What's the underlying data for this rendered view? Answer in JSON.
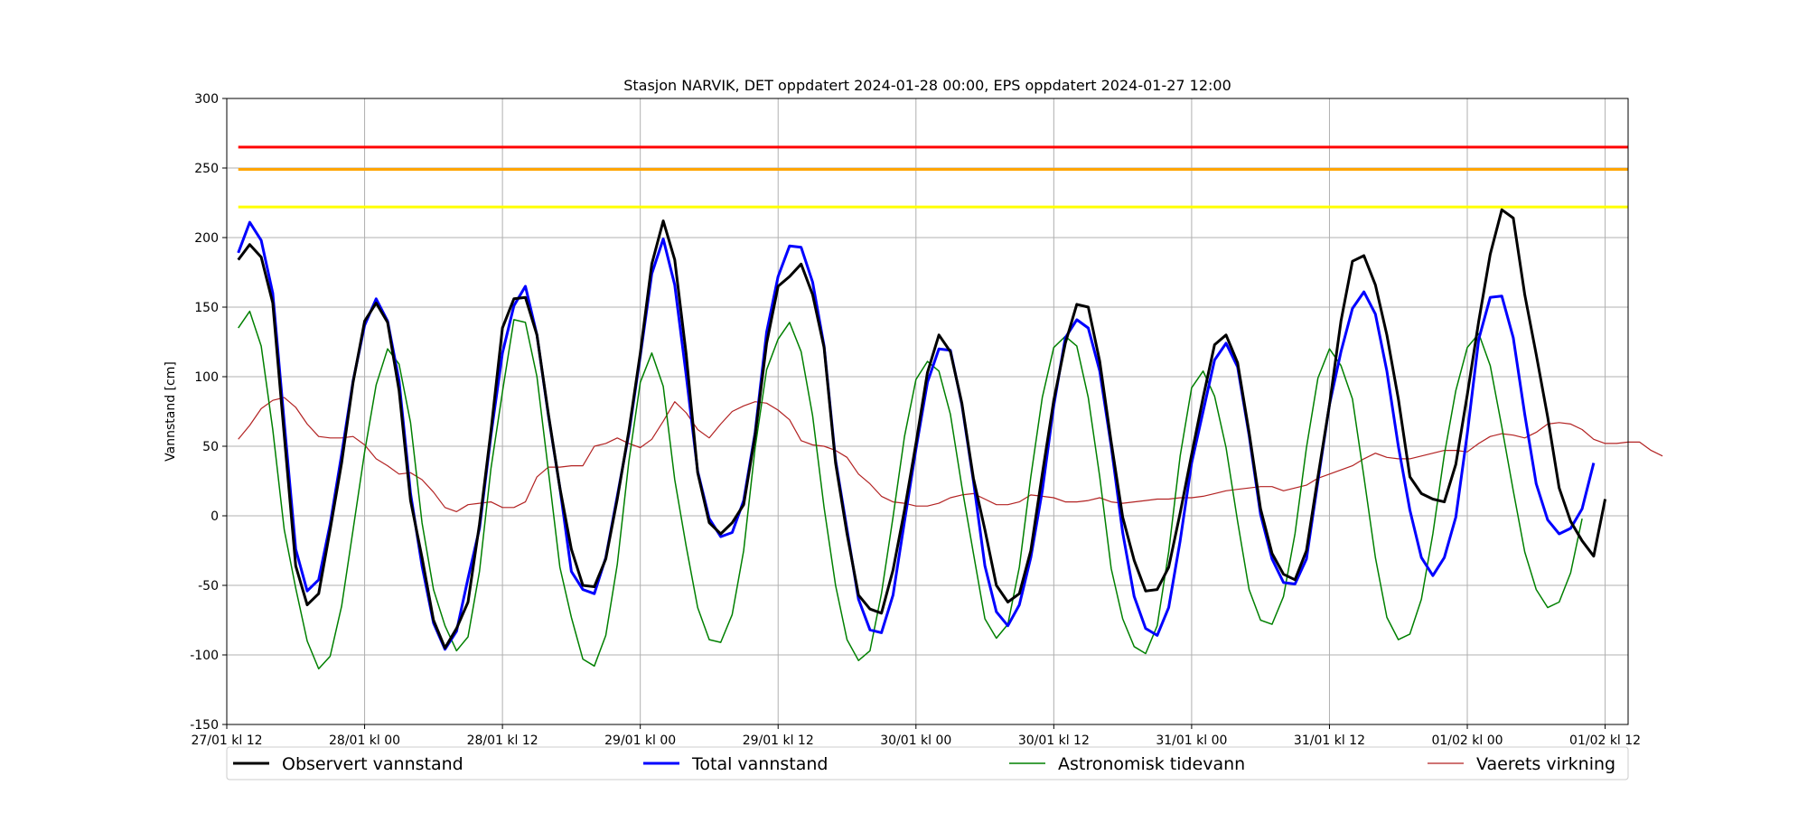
{
  "chart_data": {
    "type": "line",
    "title": "Stasjon NARVIK, DET oppdatert 2024-01-28 00:00, EPS oppdatert 2024-01-27 12:00",
    "xlabel": "",
    "ylabel": "Vannstand [cm]",
    "ylim": [
      -150,
      300
    ],
    "yticks": [
      -150,
      -100,
      -50,
      0,
      50,
      100,
      150,
      200,
      250,
      300
    ],
    "xlim": [
      0,
      122
    ],
    "x_unit_note": "hours since 27/01 kl 12",
    "xticks": [
      {
        "x": 0,
        "label": "27/01 kl 12"
      },
      {
        "x": 12,
        "label": "28/01 kl 00"
      },
      {
        "x": 24,
        "label": "28/01 kl 12"
      },
      {
        "x": 36,
        "label": "29/01 kl 00"
      },
      {
        "x": 48,
        "label": "29/01 kl 12"
      },
      {
        "x": 60,
        "label": "30/01 kl 00"
      },
      {
        "x": 72,
        "label": "30/01 kl 12"
      },
      {
        "x": 84,
        "label": "31/01 kl 00"
      },
      {
        "x": 96,
        "label": "31/01 kl 12"
      },
      {
        "x": 108,
        "label": "01/02 kl 00"
      },
      {
        "x": 120,
        "label": "01/02 kl 12"
      }
    ],
    "grid": true,
    "legend_placement": "bottom",
    "thresholds": [
      {
        "value": 265,
        "color": "#ff0000"
      },
      {
        "value": 249,
        "color": "#ffa500"
      },
      {
        "value": 222,
        "color": "#ffff00"
      }
    ],
    "x_start": 1,
    "x_step": 1,
    "series": [
      {
        "name": "Observert vannstand",
        "color": "#000000",
        "width": 3,
        "values": [
          184,
          195,
          186,
          153,
          58,
          -36,
          -64,
          -56,
          -10,
          38,
          96,
          140,
          153,
          139,
          90,
          11,
          -30,
          -75,
          -95,
          -81,
          -62,
          -6,
          61,
          135,
          156,
          157,
          130,
          73,
          20,
          -24,
          -50,
          -51,
          -31,
          12,
          61,
          117,
          181,
          212,
          184,
          116,
          31,
          -5,
          -13,
          -5,
          8,
          58,
          124,
          165,
          172,
          181,
          159,
          121,
          38,
          -13,
          -57,
          -67,
          -70,
          -39,
          4,
          52,
          103,
          130,
          118,
          81,
          27,
          -10,
          -50,
          -62,
          -56,
          -25,
          30,
          83,
          124,
          152,
          150,
          111,
          53,
          -1,
          -32,
          -54,
          -53,
          -37,
          2,
          44,
          85,
          123,
          130,
          110,
          60,
          5,
          -27,
          -42,
          -46,
          -25,
          28,
          80,
          140,
          183,
          187,
          166,
          130,
          84,
          28,
          16,
          12,
          10,
          37,
          87,
          140,
          188,
          220,
          214,
          159,
          116,
          71,
          20,
          -4,
          -18,
          -29,
          12
        ]
      },
      {
        "name": "Total vannstand",
        "color": "#0000ff",
        "width": 3,
        "values": [
          189,
          211,
          198,
          160,
          67,
          -24,
          -54,
          -46,
          -6,
          44,
          97,
          137,
          156,
          140,
          97,
          16,
          -36,
          -77,
          -96,
          -83,
          -45,
          -9,
          58,
          117,
          151,
          165,
          130,
          72,
          20,
          -40,
          -53,
          -56,
          -30,
          14,
          59,
          115,
          174,
          199,
          166,
          101,
          32,
          -2,
          -15,
          -12,
          11,
          60,
          132,
          172,
          194,
          193,
          168,
          122,
          40,
          -10,
          -60,
          -82,
          -84,
          -57,
          -4,
          48,
          96,
          120,
          119,
          80,
          25,
          -36,
          -69,
          -79,
          -64,
          -30,
          18,
          79,
          128,
          141,
          135,
          104,
          50,
          -12,
          -58,
          -81,
          -86,
          -66,
          -18,
          38,
          75,
          112,
          124,
          107,
          58,
          1,
          -31,
          -48,
          -49,
          -31,
          25,
          80,
          118,
          149,
          161,
          145,
          104,
          50,
          4,
          -30,
          -43,
          -30,
          -1,
          59,
          127,
          157,
          158,
          128,
          73,
          23,
          -3,
          -13,
          -9,
          5,
          38
        ]
      },
      {
        "name": "Astronomisk tidevann",
        "color": "#008000",
        "width": 1.5,
        "values": [
          135,
          147,
          122,
          62,
          -10,
          -52,
          -90,
          -110,
          -101,
          -65,
          -10,
          46,
          94,
          120,
          109,
          67,
          -5,
          -53,
          -79,
          -97,
          -87,
          -40,
          34,
          89,
          141,
          139,
          100,
          32,
          -37,
          -73,
          -103,
          -108,
          -86,
          -35,
          39,
          96,
          117,
          93,
          26,
          -22,
          -66,
          -89,
          -91,
          -71,
          -25,
          49,
          105,
          127,
          139,
          118,
          72,
          6,
          -50,
          -89,
          -104,
          -97,
          -56,
          -1,
          57,
          98,
          111,
          104,
          73,
          21,
          -27,
          -74,
          -88,
          -78,
          -37,
          28,
          85,
          121,
          129,
          122,
          85,
          28,
          -38,
          -74,
          -94,
          -99,
          -79,
          -26,
          43,
          92,
          104,
          86,
          49,
          -4,
          -53,
          -75,
          -78,
          -58,
          -13,
          49,
          99,
          120,
          108,
          84,
          28,
          -30,
          -73,
          -89,
          -85,
          -60,
          -13,
          44,
          90,
          121,
          131,
          108,
          64,
          18,
          -26,
          -53,
          -66,
          -62,
          -41,
          -2
        ]
      },
      {
        "name": "Vaerets virkning",
        "color": "#b22222",
        "width": 1.2,
        "values": [
          55,
          65,
          77,
          83,
          85,
          78,
          66,
          57,
          56,
          56,
          57,
          51,
          41,
          36,
          30,
          31,
          26,
          17,
          6,
          3,
          8,
          9,
          10,
          6,
          6,
          10,
          28,
          35,
          35,
          36,
          36,
          50,
          52,
          56,
          52,
          49,
          55,
          68,
          82,
          74,
          62,
          56,
          66,
          75,
          79,
          82,
          81,
          76,
          69,
          54,
          51,
          50,
          47,
          42,
          30,
          23,
          14,
          10,
          9,
          7,
          7,
          9,
          13,
          15,
          16,
          12,
          8,
          8,
          10,
          15,
          14,
          13,
          10,
          10,
          11,
          13,
          10,
          9,
          10,
          11,
          12,
          12,
          13,
          13,
          14,
          16,
          18,
          19,
          20,
          21,
          21,
          18,
          20,
          22,
          27,
          30,
          33,
          36,
          41,
          45,
          42,
          41,
          41,
          43,
          45,
          47,
          47,
          46,
          52,
          57,
          59,
          58,
          56,
          60,
          66,
          67,
          66,
          62,
          55,
          52,
          52,
          53,
          53,
          47,
          43
        ]
      }
    ]
  }
}
